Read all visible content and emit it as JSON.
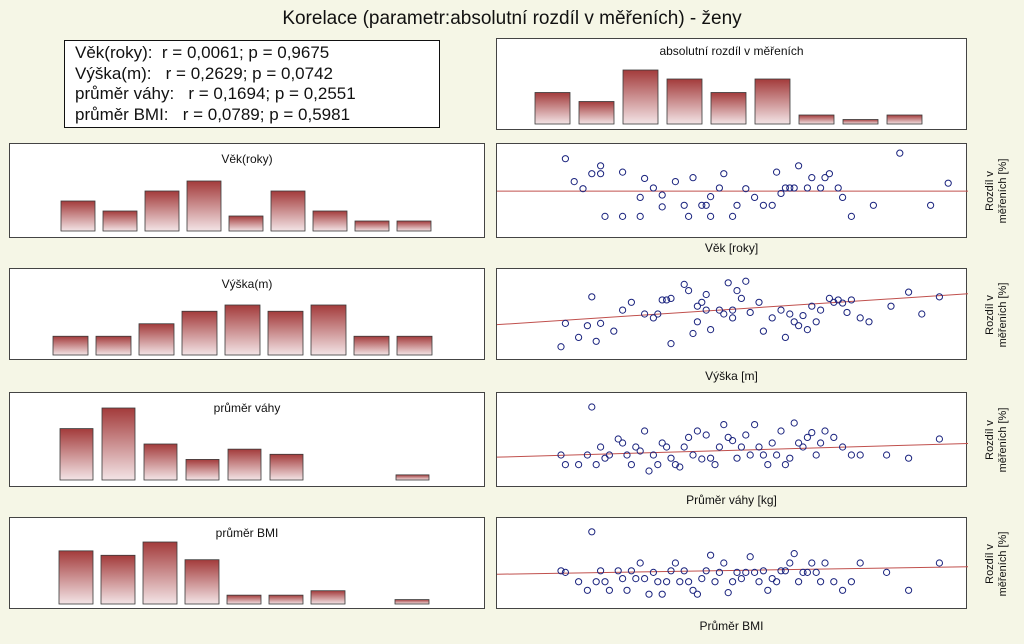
{
  "title": "Korelace (parametr:absolutní rozdíl v měřeních) - ženy",
  "stats": [
    {
      "label": "Věk(roky):",
      "r": "r = 0,0061;",
      "p": "p = 0,9675"
    },
    {
      "label": "Výška(m):",
      "r": "r = 0,2629;",
      "p": "p = 0,0742"
    },
    {
      "label": "průměr váhy:",
      "r": "r = 0,1694;",
      "p": "p = 0,2551"
    },
    {
      "label": "průměr BMI:",
      "r": "r = 0,0789;",
      "p": "p = 0,5981"
    }
  ],
  "y_axis_label": [
    "Rozdíl v",
    "měřeních [%]"
  ],
  "colors": {
    "bar_dark": "#a33b3b",
    "bar_light": "#f3e4e6",
    "regression": "#c0504d",
    "marker": "#1a237e",
    "background": "#f5f6e6"
  },
  "chart_data": [
    {
      "type": "bar",
      "title": "absolutní rozdíl v měřeních",
      "bin_index": [
        0,
        1,
        2,
        3,
        4,
        5,
        6,
        7,
        8
      ],
      "values": [
        7,
        5,
        12,
        10,
        7,
        10,
        2,
        1,
        2
      ],
      "ylim": [
        0,
        12.5
      ]
    },
    {
      "type": "bar",
      "title": "Věk(roky)",
      "bin_index": [
        0,
        1,
        2,
        3,
        4,
        5,
        6,
        7,
        8
      ],
      "values": [
        6,
        4,
        8,
        10,
        3,
        8,
        4,
        2,
        2
      ],
      "ylim": [
        0,
        11
      ]
    },
    {
      "type": "bar",
      "title": "Výška(m)",
      "bin_index": [
        0,
        1,
        2,
        3,
        4,
        5,
        6,
        7,
        8
      ],
      "values": [
        3,
        3,
        5,
        7,
        8,
        7,
        8,
        3,
        3
      ],
      "ylim": [
        0,
        10
      ]
    },
    {
      "type": "bar",
      "title": "průměr váhy",
      "bin_index": [
        0,
        1,
        2,
        3,
        4,
        5,
        6,
        8
      ],
      "values": [
        10,
        14,
        7,
        4,
        6,
        5,
        0,
        1
      ],
      "ylim": [
        0,
        15
      ]
    },
    {
      "type": "bar",
      "title": "průměr BMI",
      "bin_index": [
        0,
        1,
        2,
        3,
        4,
        5,
        6,
        8
      ],
      "values": [
        12,
        11,
        14,
        10,
        2,
        2,
        3,
        1
      ],
      "ylim": [
        0,
        16
      ]
    },
    {
      "type": "scatter",
      "xlabel": "Věk [roky]",
      "ylabel": "Rozdíl v měřeních [%]",
      "xlim": [
        0,
        100
      ],
      "ylim": [
        0,
        100
      ],
      "points": [
        [
          11,
          89
        ],
        [
          15,
          51
        ],
        [
          13,
          60
        ],
        [
          17,
          70
        ],
        [
          19,
          70
        ],
        [
          19,
          80
        ],
        [
          20,
          16
        ],
        [
          24,
          16
        ],
        [
          28,
          16
        ],
        [
          24,
          72
        ],
        [
          29,
          64
        ],
        [
          28,
          40
        ],
        [
          31,
          52
        ],
        [
          33,
          43
        ],
        [
          33,
          28
        ],
        [
          36,
          60
        ],
        [
          38,
          30
        ],
        [
          39,
          16
        ],
        [
          40,
          65
        ],
        [
          42,
          30
        ],
        [
          43,
          30
        ],
        [
          44,
          41
        ],
        [
          44,
          16
        ],
        [
          46,
          52
        ],
        [
          47,
          70
        ],
        [
          49,
          16
        ],
        [
          50,
          30
        ],
        [
          52,
          51
        ],
        [
          54,
          40
        ],
        [
          56,
          30
        ],
        [
          58,
          30
        ],
        [
          59,
          72
        ],
        [
          60,
          45
        ],
        [
          61,
          52
        ],
        [
          62,
          52
        ],
        [
          63,
          52
        ],
        [
          64,
          80
        ],
        [
          66,
          52
        ],
        [
          67,
          65
        ],
        [
          69,
          52
        ],
        [
          70,
          65
        ],
        [
          71,
          70
        ],
        [
          73,
          52
        ],
        [
          74,
          40
        ],
        [
          76,
          16
        ],
        [
          81,
          30
        ],
        [
          87,
          96
        ],
        [
          94,
          30
        ],
        [
          98,
          58
        ]
      ],
      "regression": [
        [
          0,
          48
        ],
        [
          100,
          48
        ]
      ]
    },
    {
      "type": "scatter",
      "xlabel": "Výška [m]",
      "ylabel": "Rozdíl v měřeních [%]",
      "xlim": [
        0,
        100
      ],
      "ylim": [
        0,
        100
      ],
      "points": [
        [
          10,
          8
        ],
        [
          11,
          38
        ],
        [
          14,
          20
        ],
        [
          16,
          35
        ],
        [
          17,
          72
        ],
        [
          18,
          15
        ],
        [
          19,
          38
        ],
        [
          22,
          28
        ],
        [
          24,
          55
        ],
        [
          26,
          65
        ],
        [
          29,
          50
        ],
        [
          31,
          45
        ],
        [
          32,
          50
        ],
        [
          33,
          68
        ],
        [
          34,
          68
        ],
        [
          35,
          70
        ],
        [
          35,
          12
        ],
        [
          38,
          88
        ],
        [
          39,
          80
        ],
        [
          40,
          25
        ],
        [
          41,
          60
        ],
        [
          41,
          40
        ],
        [
          42,
          65
        ],
        [
          43,
          75
        ],
        [
          43,
          55
        ],
        [
          44,
          30
        ],
        [
          46,
          55
        ],
        [
          47,
          50
        ],
        [
          48,
          90
        ],
        [
          49,
          45
        ],
        [
          49,
          55
        ],
        [
          50,
          80
        ],
        [
          51,
          70
        ],
        [
          52,
          92
        ],
        [
          53,
          52
        ],
        [
          55,
          65
        ],
        [
          56,
          28
        ],
        [
          58,
          45
        ],
        [
          60,
          55
        ],
        [
          61,
          20
        ],
        [
          62,
          50
        ],
        [
          63,
          40
        ],
        [
          64,
          35
        ],
        [
          65,
          48
        ],
        [
          66,
          30
        ],
        [
          67,
          60
        ],
        [
          68,
          40
        ],
        [
          69,
          55
        ],
        [
          71,
          70
        ],
        [
          72,
          65
        ],
        [
          73,
          68
        ],
        [
          74,
          64
        ],
        [
          75,
          52
        ],
        [
          76,
          68
        ],
        [
          78,
          45
        ],
        [
          80,
          40
        ],
        [
          85,
          60
        ],
        [
          89,
          78
        ],
        [
          92,
          50
        ],
        [
          96,
          72
        ]
      ],
      "regression": [
        [
          0,
          38
        ],
        [
          100,
          75
        ]
      ]
    },
    {
      "type": "scatter",
      "xlabel": "Průměr váhy [kg]",
      "ylabel": "Rozdíl v měřeních [%]",
      "xlim": [
        0,
        100
      ],
      "ylim": [
        0,
        100
      ],
      "points": [
        [
          10,
          30
        ],
        [
          11,
          18
        ],
        [
          14,
          18
        ],
        [
          16,
          30
        ],
        [
          17,
          90
        ],
        [
          18,
          18
        ],
        [
          19,
          40
        ],
        [
          20,
          26
        ],
        [
          21,
          30
        ],
        [
          23,
          50
        ],
        [
          24,
          45
        ],
        [
          25,
          30
        ],
        [
          26,
          18
        ],
        [
          27,
          40
        ],
        [
          28,
          35
        ],
        [
          29,
          60
        ],
        [
          30,
          10
        ],
        [
          31,
          30
        ],
        [
          32,
          18
        ],
        [
          33,
          45
        ],
        [
          34,
          40
        ],
        [
          35,
          26
        ],
        [
          36,
          18
        ],
        [
          37,
          15
        ],
        [
          38,
          40
        ],
        [
          39,
          52
        ],
        [
          40,
          30
        ],
        [
          41,
          60
        ],
        [
          42,
          25
        ],
        [
          43,
          55
        ],
        [
          44,
          26
        ],
        [
          45,
          18
        ],
        [
          46,
          40
        ],
        [
          47,
          68
        ],
        [
          48,
          52
        ],
        [
          49,
          48
        ],
        [
          50,
          26
        ],
        [
          51,
          40
        ],
        [
          52,
          55
        ],
        [
          53,
          30
        ],
        [
          54,
          68
        ],
        [
          55,
          40
        ],
        [
          56,
          30
        ],
        [
          57,
          18
        ],
        [
          58,
          45
        ],
        [
          59,
          30
        ],
        [
          60,
          60
        ],
        [
          61,
          18
        ],
        [
          62,
          26
        ],
        [
          63,
          70
        ],
        [
          64,
          45
        ],
        [
          65,
          40
        ],
        [
          66,
          52
        ],
        [
          67,
          58
        ],
        [
          68,
          30
        ],
        [
          69,
          45
        ],
        [
          70,
          60
        ],
        [
          72,
          52
        ],
        [
          74,
          40
        ],
        [
          76,
          30
        ],
        [
          78,
          30
        ],
        [
          84,
          30
        ],
        [
          89,
          26
        ],
        [
          96,
          50
        ]
      ],
      "regression": [
        [
          0,
          28
        ],
        [
          100,
          44
        ]
      ]
    },
    {
      "type": "scatter",
      "xlabel": "Průměr BMI",
      "ylabel": "Rozdíl v měřeních [%]",
      "xlim": [
        0,
        100
      ],
      "ylim": [
        0,
        100
      ],
      "points": [
        [
          10,
          40
        ],
        [
          11,
          38
        ],
        [
          14,
          26
        ],
        [
          16,
          15
        ],
        [
          17,
          90
        ],
        [
          18,
          26
        ],
        [
          19,
          40
        ],
        [
          20,
          26
        ],
        [
          21,
          15
        ],
        [
          23,
          40
        ],
        [
          24,
          30
        ],
        [
          25,
          15
        ],
        [
          26,
          40
        ],
        [
          27,
          30
        ],
        [
          28,
          50
        ],
        [
          29,
          30
        ],
        [
          30,
          10
        ],
        [
          31,
          38
        ],
        [
          32,
          26
        ],
        [
          33,
          10
        ],
        [
          34,
          26
        ],
        [
          35,
          40
        ],
        [
          36,
          50
        ],
        [
          37,
          26
        ],
        [
          38,
          40
        ],
        [
          39,
          26
        ],
        [
          40,
          15
        ],
        [
          41,
          10
        ],
        [
          42,
          30
        ],
        [
          43,
          40
        ],
        [
          44,
          60
        ],
        [
          45,
          26
        ],
        [
          46,
          38
        ],
        [
          47,
          50
        ],
        [
          48,
          12
        ],
        [
          49,
          26
        ],
        [
          50,
          38
        ],
        [
          51,
          30
        ],
        [
          52,
          38
        ],
        [
          53,
          58
        ],
        [
          54,
          38
        ],
        [
          55,
          26
        ],
        [
          56,
          40
        ],
        [
          57,
          15
        ],
        [
          58,
          30
        ],
        [
          59,
          26
        ],
        [
          60,
          40
        ],
        [
          61,
          40
        ],
        [
          62,
          50
        ],
        [
          63,
          62
        ],
        [
          64,
          26
        ],
        [
          65,
          38
        ],
        [
          66,
          38
        ],
        [
          67,
          50
        ],
        [
          68,
          38
        ],
        [
          69,
          26
        ],
        [
          70,
          50
        ],
        [
          72,
          26
        ],
        [
          74,
          15
        ],
        [
          76,
          26
        ],
        [
          78,
          50
        ],
        [
          84,
          38
        ],
        [
          89,
          15
        ],
        [
          96,
          50
        ]
      ],
      "regression": [
        [
          0,
          36
        ],
        [
          100,
          45
        ]
      ]
    }
  ]
}
